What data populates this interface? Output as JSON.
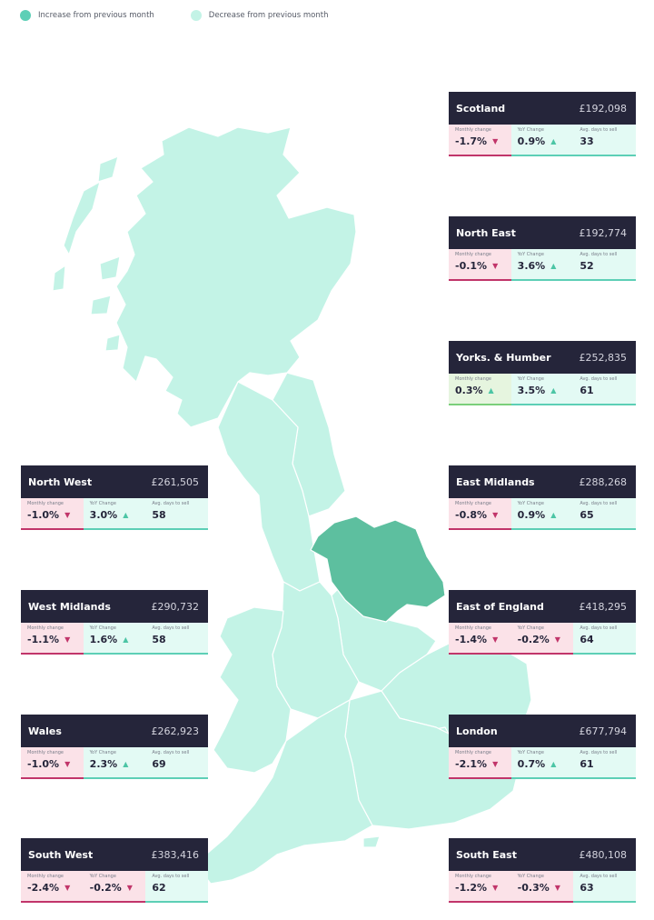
{
  "legend": [
    {
      "label": "Increase from previous month",
      "color": "#5dcfb6"
    },
    {
      "label": "Decrease from previous month",
      "color": "#c3f3e6"
    }
  ],
  "map": {
    "highlight_region": "Yorks. & Humber",
    "base_color": "#c3f3e6",
    "highlight_color": "#5dbf9f"
  },
  "colors": {
    "header": "#25253a",
    "up": "#4cc5a5",
    "down": "#c1356a"
  },
  "regions": [
    {
      "name": "Scotland",
      "price": "£192,098",
      "stats": [
        {
          "label": "Monthly change",
          "value": "-1.7%",
          "dir": "down"
        },
        {
          "label": "YoY Change",
          "value": "0.9%",
          "dir": "up"
        },
        {
          "label": "Avg. days to sell",
          "value": "33",
          "dir": "none"
        }
      ]
    },
    {
      "name": "North East",
      "price": "£192,774",
      "stats": [
        {
          "label": "Monthly change",
          "value": "-0.1%",
          "dir": "down"
        },
        {
          "label": "YoY Change",
          "value": "3.6%",
          "dir": "up"
        },
        {
          "label": "Avg. days to sell",
          "value": "52",
          "dir": "none"
        }
      ]
    },
    {
      "name": "Yorks. & Humber",
      "price": "£252,835",
      "stats": [
        {
          "label": "Monthly change",
          "value": "0.3%",
          "dir": "upm"
        },
        {
          "label": "YoY Change",
          "value": "3.5%",
          "dir": "up"
        },
        {
          "label": "Avg. days to sell",
          "value": "61",
          "dir": "none"
        }
      ]
    },
    {
      "name": "East Midlands",
      "price": "£288,268",
      "stats": [
        {
          "label": "Monthly change",
          "value": "-0.8%",
          "dir": "down"
        },
        {
          "label": "YoY Change",
          "value": "0.9%",
          "dir": "up"
        },
        {
          "label": "Avg. days to sell",
          "value": "65",
          "dir": "none"
        }
      ]
    },
    {
      "name": "East of England",
      "price": "£418,295",
      "stats": [
        {
          "label": "Monthly change",
          "value": "-1.4%",
          "dir": "down"
        },
        {
          "label": "YoY Change",
          "value": "-0.2%",
          "dir": "down"
        },
        {
          "label": "Avg. days to sell",
          "value": "64",
          "dir": "none"
        }
      ]
    },
    {
      "name": "London",
      "price": "£677,794",
      "stats": [
        {
          "label": "Monthly change",
          "value": "-2.1%",
          "dir": "down"
        },
        {
          "label": "YoY Change",
          "value": "0.7%",
          "dir": "up"
        },
        {
          "label": "Avg. days to sell",
          "value": "61",
          "dir": "none"
        }
      ]
    },
    {
      "name": "South East",
      "price": "£480,108",
      "stats": [
        {
          "label": "Monthly change",
          "value": "-1.2%",
          "dir": "down"
        },
        {
          "label": "YoY Change",
          "value": "-0.3%",
          "dir": "down"
        },
        {
          "label": "Avg. days to sell",
          "value": "63",
          "dir": "none"
        }
      ]
    },
    {
      "name": "North West",
      "price": "£261,505",
      "stats": [
        {
          "label": "Monthly change",
          "value": "-1.0%",
          "dir": "down"
        },
        {
          "label": "YoY Change",
          "value": "3.0%",
          "dir": "up"
        },
        {
          "label": "Avg. days to sell",
          "value": "58",
          "dir": "none"
        }
      ]
    },
    {
      "name": "West Midlands",
      "price": "£290,732",
      "stats": [
        {
          "label": "Monthly change",
          "value": "-1.1%",
          "dir": "down"
        },
        {
          "label": "YoY Change",
          "value": "1.6%",
          "dir": "up"
        },
        {
          "label": "Avg. days to sell",
          "value": "58",
          "dir": "none"
        }
      ]
    },
    {
      "name": "Wales",
      "price": "£262,923",
      "stats": [
        {
          "label": "Monthly change",
          "value": "-1.0%",
          "dir": "down"
        },
        {
          "label": "YoY Change",
          "value": "2.3%",
          "dir": "up"
        },
        {
          "label": "Avg. days to sell",
          "value": "69",
          "dir": "none"
        }
      ]
    },
    {
      "name": "South West",
      "price": "£383,416",
      "stats": [
        {
          "label": "Monthly change",
          "value": "-2.4%",
          "dir": "down"
        },
        {
          "label": "YoY Change",
          "value": "-0.2%",
          "dir": "down"
        },
        {
          "label": "Avg. days to sell",
          "value": "62",
          "dir": "none"
        }
      ]
    }
  ]
}
